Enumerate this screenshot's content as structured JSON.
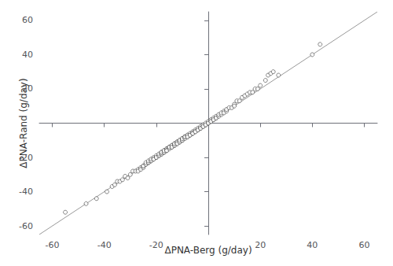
{
  "chart_data": {
    "type": "scatter",
    "xlabel": "ΔPNA-Berg (g/day)",
    "ylabel": "ΔPNA-Rand (g/day)",
    "xlim": [
      -65,
      65
    ],
    "ylim": [
      -65,
      65
    ],
    "xticks": [
      -60,
      -40,
      -20,
      {
        "value": 0,
        "label": ""
      },
      20,
      40,
      60
    ],
    "yticks": [
      -60,
      -40,
      -20,
      {
        "value": 0,
        "label": ""
      },
      20,
      40,
      60
    ],
    "grid": false,
    "series": [
      {
        "type": "line",
        "color": "#999999",
        "line_style": "solid",
        "x": [
          -65,
          65
        ],
        "values": [
          -65,
          65
        ]
      },
      {
        "type": "scatter",
        "color": "#444444",
        "marker": "hollow",
        "x": [
          -55,
          -47,
          -43,
          -39,
          -37,
          -36,
          -35,
          -34,
          -33,
          -32,
          -31,
          -30,
          -29,
          -28,
          -27,
          -27,
          -26,
          -26,
          -25,
          -25,
          -25,
          -24,
          -24,
          -24,
          -23,
          -23,
          -23,
          -22,
          -22,
          -22,
          -21,
          -21,
          -21,
          -20,
          -20,
          -20,
          -19,
          -19,
          -19,
          -18,
          -18,
          -18,
          -18,
          -17,
          -17,
          -17,
          -17,
          -16,
          -16,
          -16,
          -16,
          -15,
          -15,
          -15,
          -15,
          -14,
          -14,
          -14,
          -14,
          -13,
          -13,
          -13,
          -13,
          -12,
          -12,
          -12,
          -12,
          -11,
          -11,
          -11,
          -11,
          -10,
          -10,
          -10,
          -10,
          -9,
          -9,
          -9,
          -9,
          -8,
          -8,
          -8,
          -8,
          -7,
          -7,
          -7,
          -6,
          -6,
          -6,
          -5,
          -5,
          -5,
          -4,
          -4,
          -4,
          -3,
          -3,
          -3,
          -2,
          -2,
          -2,
          -1,
          -1,
          -1,
          0,
          0,
          0,
          1,
          1,
          1,
          2,
          2,
          2,
          3,
          3,
          3,
          4,
          4,
          5,
          5,
          6,
          6,
          7,
          7,
          8,
          9,
          10,
          10,
          11,
          12,
          13,
          14,
          15,
          16,
          17,
          18,
          19,
          20,
          22,
          23,
          24,
          25,
          27,
          40,
          43
        ],
        "values": [
          -52,
          -47,
          -44,
          -40,
          -37,
          -36,
          -34,
          -34,
          -33,
          -31,
          -32,
          -30,
          -28,
          -28,
          -27,
          -28,
          -26,
          -27,
          -26,
          -25,
          -25,
          -24,
          -24,
          -23,
          -23,
          -23,
          -22,
          -22,
          -22,
          -21,
          -20,
          -21,
          -21,
          -20,
          -19,
          -20,
          -19,
          -19,
          -18,
          -18,
          -18,
          -17,
          -17,
          -17,
          -16,
          -17,
          -16,
          -15,
          -15,
          -16,
          -16,
          -15,
          -14,
          -14,
          -14,
          -14,
          -13,
          -13,
          -14,
          -13,
          -12,
          -13,
          -12,
          -12,
          -11,
          -11,
          -12,
          -11,
          -10,
          -11,
          -10,
          -9,
          -10,
          -10,
          -9,
          -8,
          -9,
          -8,
          -8,
          -8,
          -7,
          -7,
          -8,
          -6,
          -7,
          -7,
          -5,
          -6,
          -6,
          -4,
          -5,
          -5,
          -4,
          -3,
          -4,
          -3,
          -2,
          -3,
          -2,
          -1,
          -2,
          -1,
          0,
          -1,
          0,
          1,
          0,
          1,
          2,
          1,
          2,
          3,
          2,
          3,
          4,
          3,
          4,
          5,
          5,
          6,
          7,
          6,
          7,
          8,
          9,
          9,
          11,
          10,
          13,
          13,
          15,
          16,
          17,
          18,
          18,
          20,
          20,
          22,
          25,
          28,
          29,
          30,
          28,
          40,
          46
        ]
      }
    ]
  }
}
